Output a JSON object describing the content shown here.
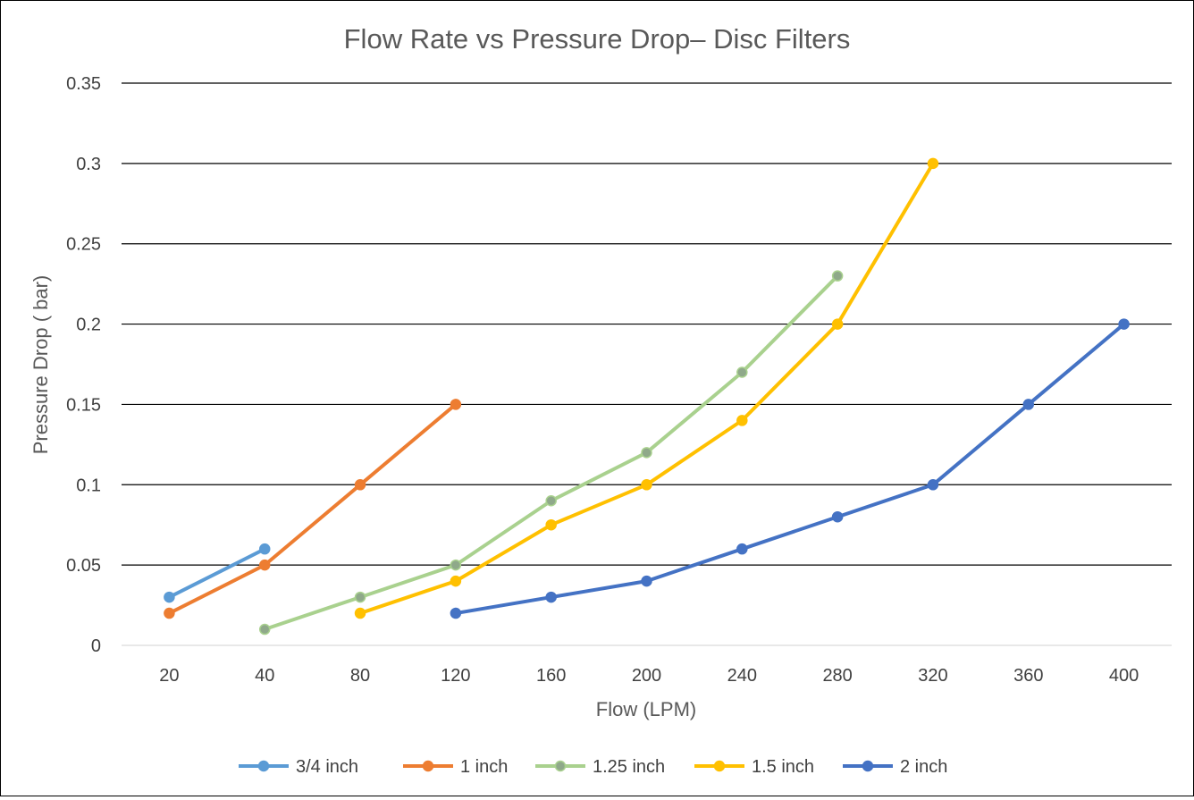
{
  "chart_data": {
    "type": "line",
    "title": "Flow Rate vs Pressure Drop– Disc Filters",
    "xlabel": "Flow (LPM)",
    "ylabel": "Pressure Drop ( bar)",
    "categories": [
      "20",
      "40",
      "80",
      "120",
      "160",
      "200",
      "240",
      "280",
      "320",
      "360",
      "400"
    ],
    "yticks": [
      "0",
      "0.05",
      "0.1",
      "0.15",
      "0.2",
      "0.25",
      "0.3",
      "0.35"
    ],
    "ylim": [
      0,
      0.35
    ],
    "grid": true,
    "legend_position": "bottom",
    "series": [
      {
        "name": "3/4 inch",
        "color": "#5B9BD5",
        "values": [
          0.03,
          0.06,
          null,
          null,
          null,
          null,
          null,
          null,
          null,
          null,
          null
        ]
      },
      {
        "name": "1 inch",
        "color": "#ED7D31",
        "values": [
          0.02,
          0.05,
          0.1,
          0.15,
          null,
          null,
          null,
          null,
          null,
          null,
          null
        ]
      },
      {
        "name": "1.25 inch",
        "color": "#A9D18E",
        "marker_color": "#8FA98A",
        "values": [
          null,
          0.01,
          0.03,
          0.05,
          0.09,
          0.12,
          0.17,
          0.23,
          null,
          null,
          null
        ]
      },
      {
        "name": "1.5 inch",
        "color": "#FFC000",
        "values": [
          null,
          null,
          0.02,
          0.04,
          0.075,
          0.1,
          0.14,
          0.2,
          0.3,
          null,
          null
        ]
      },
      {
        "name": "2 inch",
        "color": "#4472C4",
        "values": [
          null,
          null,
          null,
          0.02,
          0.03,
          0.04,
          0.06,
          0.08,
          0.1,
          0.15,
          0.2
        ]
      }
    ]
  }
}
